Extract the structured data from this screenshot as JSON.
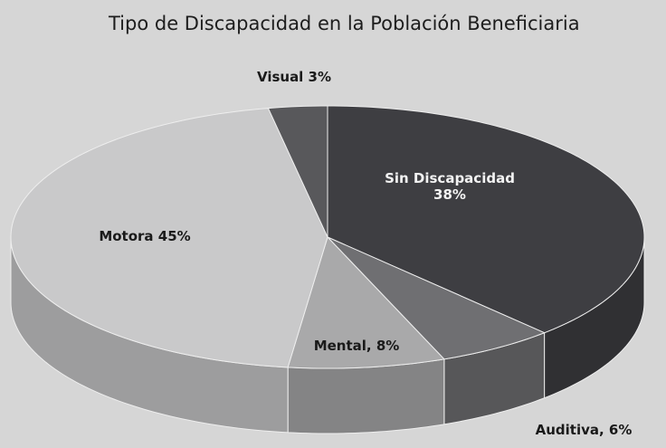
{
  "chart_data": {
    "type": "pie3d",
    "title": "Tipo de Discapacidad en la Población Beneficiaria",
    "values": [
      38,
      6,
      8,
      45,
      3
    ],
    "value_labels": [
      "Sin Discapacidad 38%",
      "Auditiva, 6%",
      "Mental, 8%",
      "Motora 45%",
      "Visual 3%"
    ],
    "colors": [
      "#3e3e42",
      "#6f6f72",
      "#a9a9aa",
      "#c9c9ca",
      "#58585b"
    ]
  }
}
